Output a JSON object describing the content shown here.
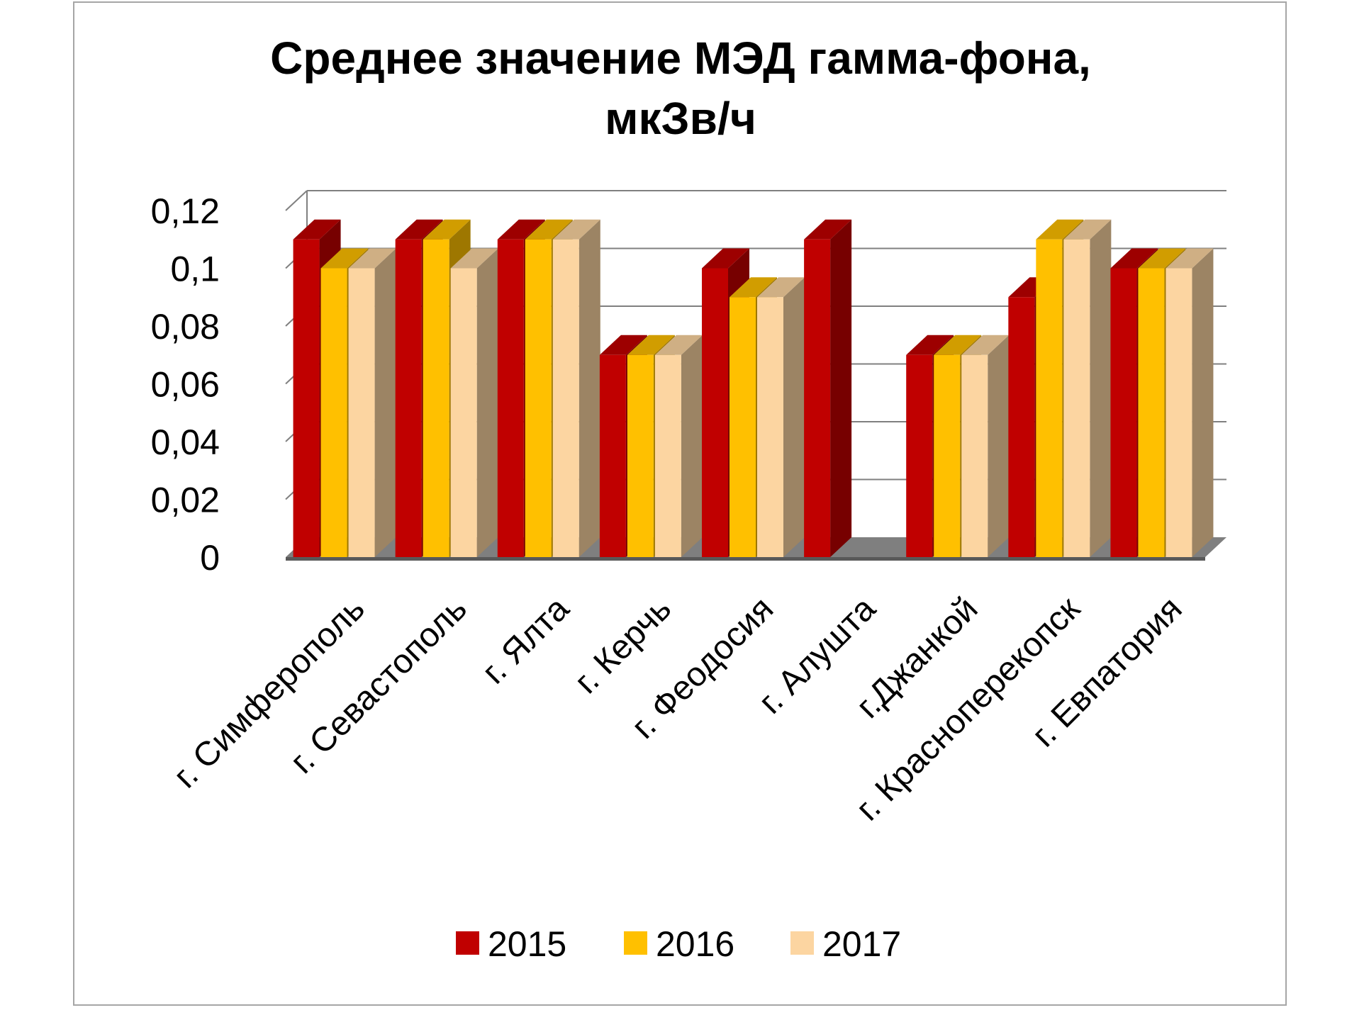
{
  "chart_data": {
    "type": "bar",
    "title_lines": [
      "Среднее значение МЭД гамма-фона,",
      "мкЗв/ч"
    ],
    "categories": [
      "г. Симферополь",
      "г. Севастополь",
      "г. Ялта",
      "г. Керчь",
      "г. Феодосия",
      "г. Алушта",
      "г.Джанкой",
      "г. Красноперекопск",
      "г. Евпатория"
    ],
    "series": [
      {
        "name": "2015",
        "color": "#c00000",
        "values": [
          0.11,
          0.11,
          0.11,
          0.07,
          0.1,
          0.11,
          0.07,
          0.09,
          0.1
        ]
      },
      {
        "name": "2016",
        "color": "#ffc000",
        "values": [
          0.1,
          0.11,
          0.11,
          0.07,
          0.09,
          null,
          0.07,
          0.11,
          0.1
        ]
      },
      {
        "name": "2017",
        "color": "#fcd5a1",
        "values": [
          0.1,
          0.1,
          0.11,
          0.07,
          0.09,
          null,
          0.07,
          0.11,
          0.1
        ]
      }
    ],
    "y_ticks": [
      "0",
      "0,02",
      "0,04",
      "0,06",
      "0,08",
      "0,1",
      "0,12"
    ],
    "ylim": [
      0,
      0.12
    ],
    "grid": true,
    "legend_position": "bottom",
    "style": "3d-clustered-column"
  }
}
